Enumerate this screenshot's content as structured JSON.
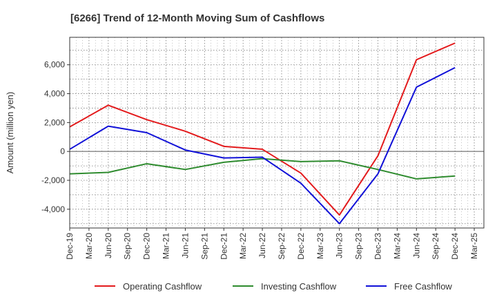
{
  "chart_data": {
    "type": "line",
    "title": "[6266]  Trend of 12-Month Moving Sum of Cashflows",
    "xlabel": "",
    "ylabel": "Amount (million yen)",
    "ylim": [
      -5300,
      7900
    ],
    "yticks": [
      -4000,
      -2000,
      0,
      2000,
      4000,
      6000
    ],
    "ytick_labels": [
      "-4,000",
      "-2,000",
      "0",
      "2,000",
      "4,000",
      "6,000"
    ],
    "x_tick_labels": [
      "Dec-19",
      "Mar-20",
      "Jun-20",
      "Sep-20",
      "Dec-20",
      "Mar-21",
      "Jun-21",
      "Sep-21",
      "Dec-21",
      "Mar-22",
      "Jun-22",
      "Sep-22",
      "Dec-22",
      "Mar-23",
      "Jun-23",
      "Sep-23",
      "Dec-23",
      "Mar-24",
      "Jun-24",
      "Sep-24",
      "Dec-24",
      "Mar-25"
    ],
    "x": [
      "Dec-19",
      "Jun-20",
      "Dec-20",
      "Jun-21",
      "Dec-21",
      "Jun-22",
      "Dec-22",
      "Jun-23",
      "Dec-23",
      "Jun-24",
      "Dec-24"
    ],
    "series": [
      {
        "name": "Operating Cashflow",
        "color": "#e31a1c",
        "values": [
          1700,
          3200,
          2200,
          1400,
          350,
          150,
          -1500,
          -4400,
          -300,
          6350,
          7500
        ]
      },
      {
        "name": "Investing Cashflow",
        "color": "#2e8b2e",
        "values": [
          -1550,
          -1450,
          -850,
          -1250,
          -750,
          -500,
          -700,
          -650,
          -1250,
          -1900,
          -1700
        ]
      },
      {
        "name": "Free Cashflow",
        "color": "#1010d8",
        "values": [
          150,
          1750,
          1300,
          100,
          -450,
          -400,
          -2200,
          -5000,
          -1550,
          4450,
          5800
        ]
      }
    ],
    "grid": true,
    "legend_position": "bottom"
  }
}
